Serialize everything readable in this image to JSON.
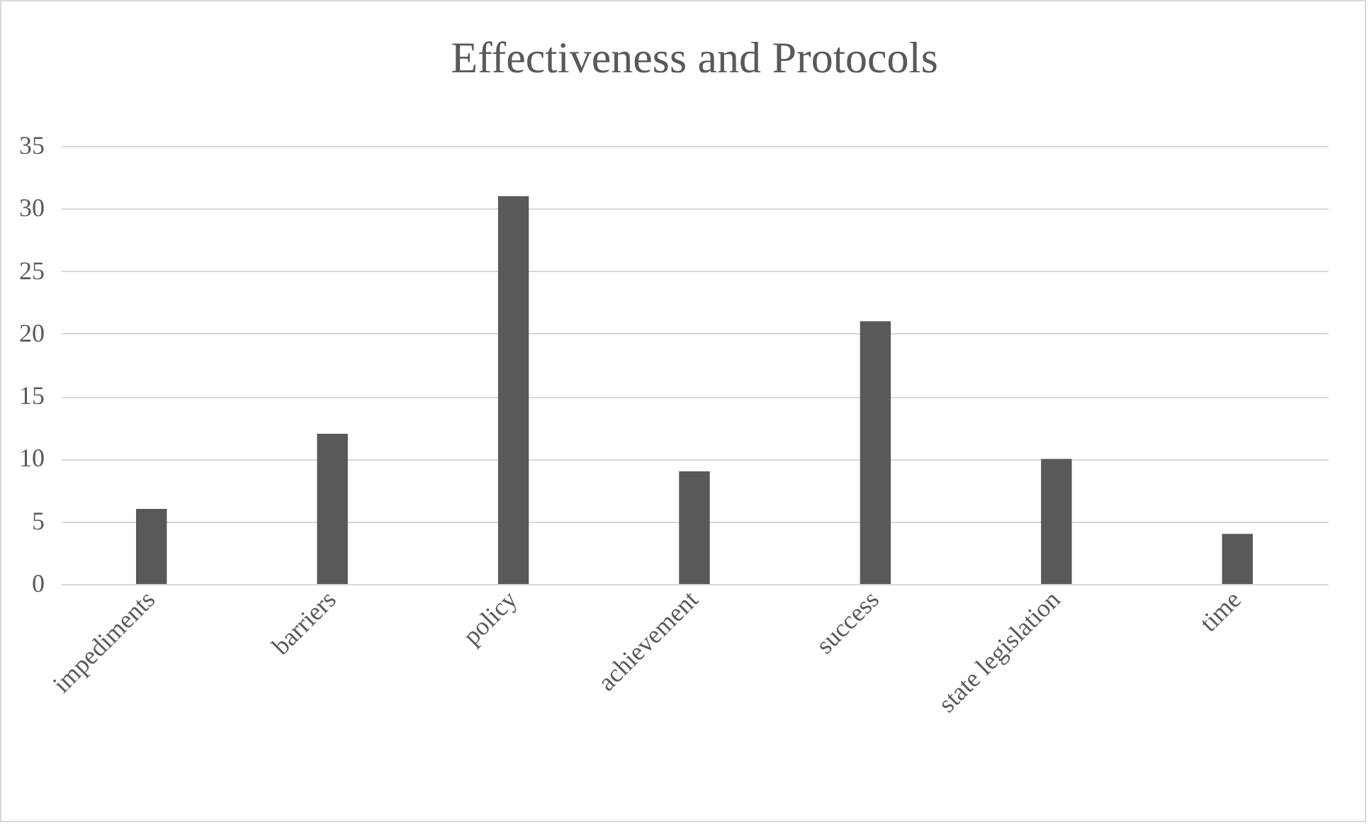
{
  "chart_data": {
    "type": "bar",
    "title": "Effectiveness and Protocols",
    "categories": [
      "impediments",
      "barriers",
      "policy",
      "achievement",
      "success",
      "state legislation",
      "time"
    ],
    "values": [
      6,
      12,
      31,
      9,
      21,
      10,
      4
    ],
    "color": "#595959",
    "ylim": [
      0,
      35
    ],
    "yticks": [
      0,
      5,
      10,
      15,
      20,
      25,
      30,
      35
    ],
    "grid": "y"
  }
}
